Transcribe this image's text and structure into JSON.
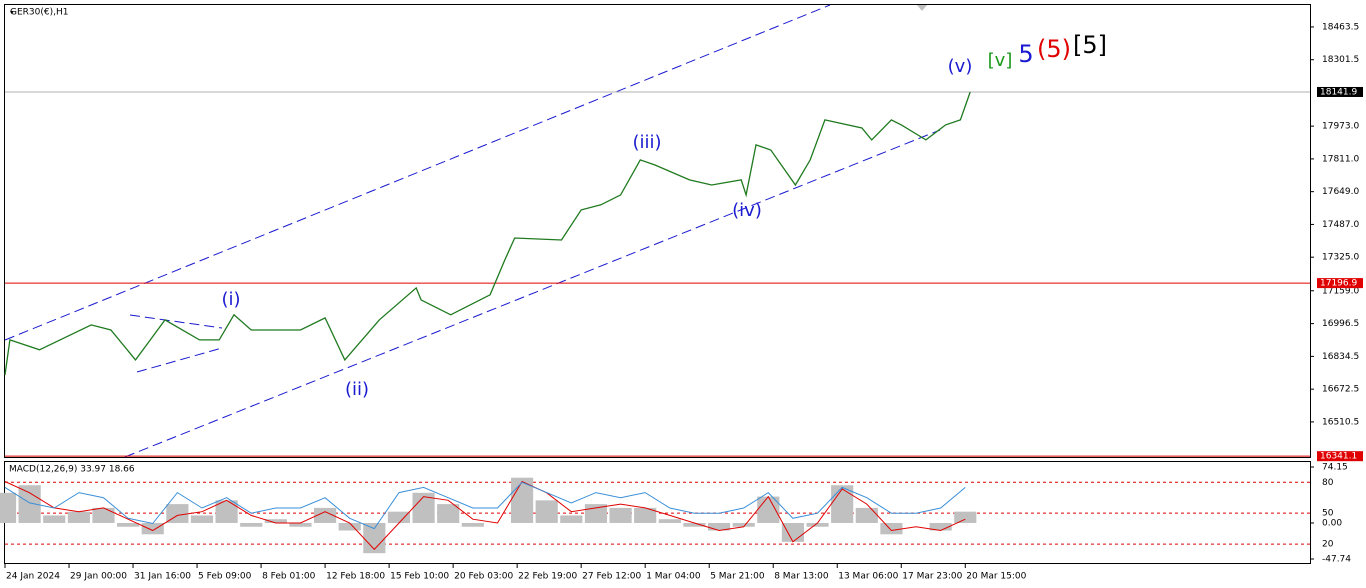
{
  "chart_data": [
    {
      "type": "line",
      "title": "GER30(€),H1",
      "color": "#1f7a1f",
      "x": [
        0,
        2,
        14,
        35,
        43,
        53,
        59,
        65,
        79,
        87,
        93,
        100,
        120,
        130,
        138,
        152,
        167,
        169,
        181,
        197,
        203,
        207,
        226,
        234,
        242,
        250,
        258,
        264,
        278,
        287,
        299,
        301,
        305,
        311,
        321,
        327,
        333,
        348,
        352,
        360,
        364,
        374,
        382,
        388,
        392
      ],
      "values": [
        16743,
        16916,
        16867,
        16990,
        16965,
        16817,
        16916,
        17015,
        16916,
        16916,
        17040,
        16965,
        16965,
        17025,
        16817,
        17015,
        17173,
        17114,
        17040,
        17139,
        17311,
        17420,
        17410,
        17559,
        17584,
        17633,
        17806,
        17781,
        17707,
        17682,
        17707,
        17633,
        17880,
        17855,
        17682,
        17806,
        18004,
        17964,
        17905,
        18004,
        17979,
        17905,
        17979,
        18004,
        18142
      ],
      "xlim": [
        0,
        530
      ],
      "xticks": [
        {
          "value": 0,
          "label": "24 Jan 2024"
        },
        {
          "value": 26,
          "label": "29 Jan 00:00"
        },
        {
          "value": 52,
          "label": "31 Jan 16:00"
        },
        {
          "value": 78,
          "label": "5 Feb 09:00"
        },
        {
          "value": 104,
          "label": "8 Feb 01:00"
        },
        {
          "value": 130,
          "label": "12 Feb 18:00"
        },
        {
          "value": 156,
          "label": "15 Feb 10:00"
        },
        {
          "value": 182,
          "label": "20 Feb 03:00"
        },
        {
          "value": 208,
          "label": "22 Feb 19:00"
        },
        {
          "value": 234,
          "label": "27 Feb 12:00"
        },
        {
          "value": 260,
          "label": "1 Mar 04:00"
        },
        {
          "value": 286,
          "label": "5 Mar 21:00"
        },
        {
          "value": 312,
          "label": "8 Mar 13:00"
        },
        {
          "value": 338,
          "label": "13 Mar 06:00"
        },
        {
          "value": 364,
          "label": "17 Mar 23:00"
        },
        {
          "value": 390,
          "label": "20 Mar 15:00"
        }
      ],
      "ylim": [
        16337,
        18572
      ],
      "yticks": [
        18463.5,
        18301.5,
        {
          "value": 17973,
          "label": "17973.0"
        },
        {
          "value": 17811,
          "label": "17811.0"
        },
        {
          "value": 17649,
          "label": "17649.0"
        },
        {
          "value": 17487,
          "label": "17487.0"
        },
        {
          "value": 17325,
          "label": "17325.0"
        },
        {
          "value": 17159,
          "label": "17159.0"
        },
        16996.5,
        16834.5,
        16672.5,
        16510.5
      ],
      "levels": [
        18141.9,
        17196.9,
        16341.1
      ],
      "level_colors": [
        "#b0b0b0",
        "#e00000",
        "#e00000"
      ],
      "level_label_colors": [
        "#000000",
        "#e00000",
        "#e00000"
      ],
      "annotations": [
        {
          "text": "(i)",
          "color": "#1a1ad0"
        },
        {
          "text": "(ii)",
          "color": "#1a1ad0"
        },
        {
          "text": "(iii)",
          "color": "#1a1ad0"
        },
        {
          "text": "(iv)",
          "color": "#1a1ad0"
        },
        {
          "text": "(v)",
          "color": "#1a1ad0"
        },
        {
          "text": "[v]",
          "color": "#1a9a1a"
        },
        {
          "text": "5",
          "color": "#1a1ad0"
        },
        {
          "text": "(5)",
          "color": "#e00000"
        },
        {
          "text": "[5]",
          "color": "#000000"
        }
      ]
    },
    {
      "type": "macd",
      "title": "MACD(12,26,9) 33.97 18.66",
      "x": [
        0,
        10,
        20,
        30,
        40,
        50,
        60,
        70,
        80,
        90,
        100,
        110,
        120,
        130,
        140,
        150,
        160,
        170,
        180,
        190,
        200,
        210,
        220,
        230,
        240,
        250,
        260,
        270,
        280,
        290,
        300,
        310,
        320,
        330,
        340,
        350,
        360,
        370,
        380,
        390
      ],
      "histogram": {
        "color": "#c0c0c0",
        "values": [
          40,
          50,
          10,
          15,
          20,
          -5,
          -15,
          25,
          10,
          30,
          -5,
          5,
          -5,
          20,
          -10,
          -40,
          15,
          40,
          25,
          -5,
          0,
          60,
          30,
          10,
          25,
          20,
          20,
          5,
          -5,
          -10,
          -5,
          35,
          -25,
          -5,
          50,
          20,
          -15,
          0,
          -10,
          15
        ]
      },
      "signal": {
        "color": "#e00000",
        "values": [
          55,
          40,
          20,
          15,
          20,
          5,
          -10,
          10,
          15,
          30,
          10,
          0,
          0,
          15,
          0,
          -35,
          0,
          35,
          30,
          5,
          0,
          55,
          40,
          15,
          20,
          25,
          20,
          10,
          0,
          -10,
          -5,
          35,
          -25,
          0,
          45,
          25,
          -10,
          -5,
          -10,
          5
        ]
      },
      "line": {
        "color": "#3a8fd8",
        "axis": "y2",
        "values": [
          75,
          60,
          55,
          70,
          65,
          45,
          40,
          70,
          55,
          65,
          50,
          55,
          55,
          65,
          45,
          35,
          70,
          75,
          65,
          55,
          55,
          80,
          70,
          60,
          70,
          65,
          70,
          55,
          50,
          50,
          55,
          70,
          45,
          50,
          75,
          65,
          50,
          50,
          55,
          75
        ]
      },
      "xlim": [
        0,
        530
      ],
      "ylim": [
        -51.7,
        80.8
      ],
      "yticks": [
        74.15,
        {
          "value": 0,
          "label": "0.00"
        },
        -47.74
      ],
      "y2lim": [
        2.6,
        99.7
      ],
      "y2ticks": [
        80,
        50,
        20
      ]
    }
  ]
}
